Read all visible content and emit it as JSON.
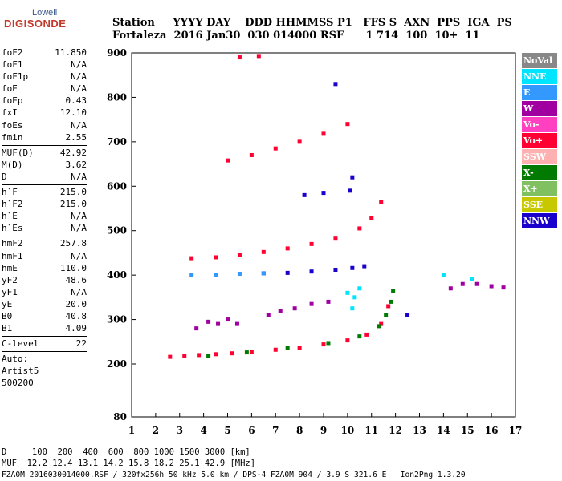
{
  "logo": {
    "top": "Lowell",
    "main": "DIGISONDE"
  },
  "header": {
    "line1": "Station     YYYY DAY    DDD HHMMSS P1   FFS S  AXN  PPS  IGA  PS",
    "line2": "Fortaleza  2016 Jan30  030 014000 RSF      1 714  100  10+  11"
  },
  "params": {
    "group1": [
      {
        "label": "foF2",
        "value": "11.850"
      },
      {
        "label": "foF1",
        "value": "N/A"
      },
      {
        "label": "foF1p",
        "value": "N/A"
      },
      {
        "label": "foE",
        "value": "N/A"
      },
      {
        "label": "foEp",
        "value": "0.43"
      },
      {
        "label": "fxI",
        "value": "12.10"
      },
      {
        "label": "foEs",
        "value": "N/A"
      },
      {
        "label": "fmin",
        "value": "2.55"
      }
    ],
    "group2": [
      {
        "label": "MUF(D)",
        "value": "42.92"
      },
      {
        "label": "M(D)",
        "value": "3.62"
      },
      {
        "label": "D",
        "value": "N/A"
      }
    ],
    "group3": [
      {
        "label": "h`F",
        "value": "215.0"
      },
      {
        "label": "h`F2",
        "value": "215.0"
      },
      {
        "label": "h`E",
        "value": "N/A"
      },
      {
        "label": "h`Es",
        "value": "N/A"
      }
    ],
    "group4": [
      {
        "label": "hmF2",
        "value": "257.8"
      },
      {
        "label": "hmF1",
        "value": "N/A"
      },
      {
        "label": "hmE",
        "value": "110.0"
      },
      {
        "label": "yF2",
        "value": "48.6"
      },
      {
        "label": "yF1",
        "value": "N/A"
      },
      {
        "label": "yE",
        "value": "20.0"
      },
      {
        "label": "B0",
        "value": "40.8"
      },
      {
        "label": "B1",
        "value": "4.09"
      }
    ],
    "group5": [
      {
        "label": "C-level",
        "value": "22"
      }
    ],
    "auto": [
      "Auto:",
      "Artist5",
      "500200"
    ]
  },
  "legend": [
    {
      "label": "NoVal",
      "color": "#888888"
    },
    {
      "label": "NNE",
      "color": "#00e5ff"
    },
    {
      "label": "E",
      "color": "#3399ff"
    },
    {
      "label": "W",
      "color": "#a000a0"
    },
    {
      "label": "Vo-",
      "color": "#ff40c0"
    },
    {
      "label": "Vo+",
      "color": "#ff0033"
    },
    {
      "label": "SSW",
      "color": "#ffb0b0"
    },
    {
      "label": "X-",
      "color": "#007a00"
    },
    {
      "label": "X+",
      "color": "#80c060"
    },
    {
      "label": "SSE",
      "color": "#c8c800"
    },
    {
      "label": "NNW",
      "color": "#1a00cc"
    }
  ],
  "footer": {
    "line1": "D     100  200  400  600  800 1000 1500 3000 [km]",
    "line2": "MUF  12.2 12.4 13.1 14.2 15.8 18.2 25.1 42.9 [MHz]",
    "line3": "FZA0M_2016030014000.RSF / 320fx256h 50 kHz 5.0 km / DPS-4 FZA0M 904 / 3.9 S 321.6 E   Ion2Png 1.3.20"
  },
  "chart_data": {
    "type": "scatter",
    "xlim": [
      1,
      17
    ],
    "ylim": [
      80,
      900
    ],
    "xticks": [
      "1",
      "2",
      "3",
      "4",
      "5",
      "6",
      "7",
      "8",
      "9",
      "10",
      "11",
      "12",
      "13",
      "14",
      "15",
      "16",
      "17"
    ],
    "yticks": [
      "900",
      "800",
      "700",
      "600",
      "500",
      "400",
      "300",
      "200",
      "80"
    ],
    "series": [
      {
        "color": "#ff0033",
        "points": [
          [
            2.6,
            216
          ],
          [
            3.2,
            218
          ],
          [
            3.8,
            220
          ],
          [
            4.5,
            222
          ],
          [
            5.2,
            224
          ],
          [
            6.0,
            227
          ],
          [
            7.0,
            232
          ],
          [
            8.0,
            237
          ],
          [
            9.0,
            244
          ],
          [
            10.0,
            253
          ],
          [
            10.8,
            266
          ],
          [
            11.4,
            290
          ],
          [
            11.7,
            330
          ]
        ]
      },
      {
        "color": "#007a00",
        "points": [
          [
            4.2,
            218
          ],
          [
            5.8,
            226
          ],
          [
            7.5,
            236
          ],
          [
            9.2,
            247
          ],
          [
            10.5,
            262
          ],
          [
            11.3,
            285
          ],
          [
            11.6,
            310
          ],
          [
            11.8,
            340
          ],
          [
            11.9,
            365
          ]
        ]
      },
      {
        "color": "#ff0033",
        "points": [
          [
            3.5,
            438
          ],
          [
            4.5,
            440
          ],
          [
            5.5,
            446
          ],
          [
            6.5,
            452
          ],
          [
            7.5,
            460
          ],
          [
            8.5,
            470
          ],
          [
            9.5,
            482
          ],
          [
            10.5,
            505
          ],
          [
            11.0,
            528
          ],
          [
            11.4,
            565
          ]
        ]
      },
      {
        "color": "#1a00cc",
        "points": [
          [
            6.5,
            404
          ],
          [
            7.5,
            405
          ],
          [
            8.5,
            408
          ],
          [
            9.5,
            412
          ],
          [
            10.2,
            416
          ],
          [
            10.7,
            420
          ]
        ]
      },
      {
        "color": "#3399ff",
        "points": [
          [
            3.5,
            400
          ],
          [
            4.5,
            401
          ],
          [
            5.5,
            403
          ],
          [
            6.5,
            404
          ]
        ]
      },
      {
        "color": "#a000a0",
        "points": [
          [
            3.7,
            280
          ],
          [
            4.2,
            295
          ],
          [
            4.6,
            290
          ],
          [
            5.0,
            300
          ],
          [
            5.4,
            290
          ],
          [
            6.7,
            310
          ],
          [
            7.2,
            320
          ],
          [
            7.8,
            325
          ],
          [
            8.5,
            335
          ],
          [
            9.2,
            340
          ],
          [
            14.3,
            370
          ],
          [
            14.8,
            380
          ],
          [
            15.4,
            380
          ],
          [
            16.0,
            375
          ],
          [
            16.5,
            372
          ]
        ]
      },
      {
        "color": "#00e5ff",
        "points": [
          [
            10.0,
            360
          ],
          [
            10.3,
            350
          ],
          [
            10.5,
            370
          ],
          [
            10.2,
            325
          ],
          [
            14.0,
            400
          ],
          [
            15.2,
            392
          ]
        ]
      },
      {
        "color": "#ff0033",
        "points": [
          [
            5.0,
            658
          ],
          [
            6.0,
            670
          ],
          [
            7.0,
            685
          ],
          [
            8.0,
            700
          ],
          [
            9.0,
            718
          ],
          [
            10.0,
            740
          ],
          [
            5.5,
            890
          ],
          [
            6.3,
            893
          ]
        ]
      },
      {
        "color": "#1a00cc",
        "points": [
          [
            8.2,
            580
          ],
          [
            9.0,
            585
          ],
          [
            10.1,
            590
          ],
          [
            10.2,
            620
          ],
          [
            9.5,
            830
          ],
          [
            12.5,
            310
          ]
        ]
      }
    ]
  }
}
